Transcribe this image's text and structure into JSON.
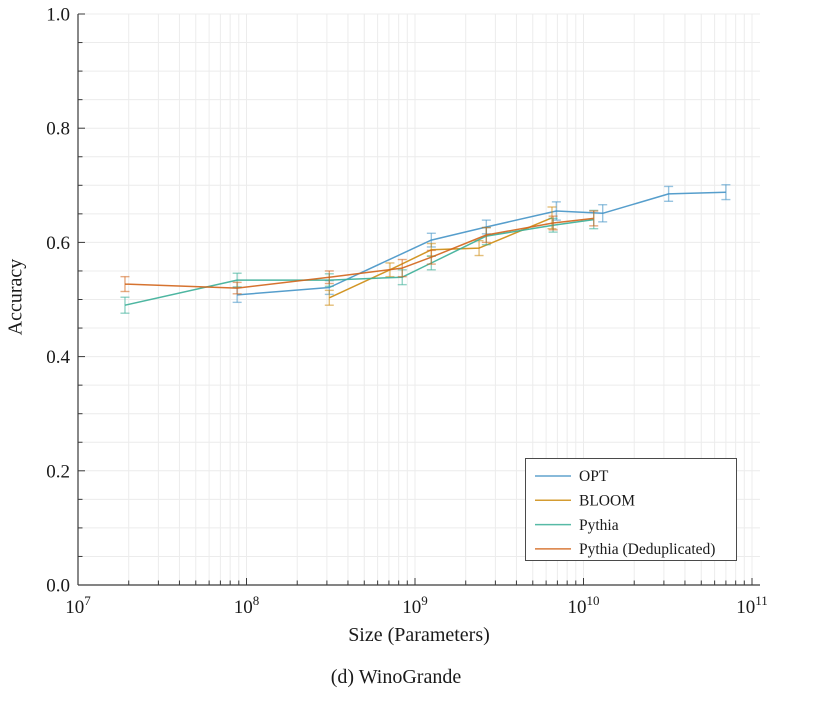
{
  "chart_data": {
    "type": "line",
    "title": "(d) WinoGrande",
    "xlabel": "Size (Parameters)",
    "ylabel": "Accuracy",
    "x_scale": "log",
    "xlim": [
      10000000,
      110000000000
    ],
    "ylim": [
      0.0,
      1.0
    ],
    "grid": true,
    "y_ticks": [
      0.0,
      0.2,
      0.4,
      0.6,
      0.8,
      1.0
    ],
    "y_tick_labels": [
      "0.0",
      "0.2",
      "0.4",
      "0.6",
      "0.8",
      "1.0"
    ],
    "x_ticks": [
      {
        "base": "10",
        "exponent": "7"
      },
      {
        "base": "10",
        "exponent": "8"
      },
      {
        "base": "10",
        "exponent": "9"
      },
      {
        "base": "10",
        "exponent": "10"
      },
      {
        "base": "10",
        "exponent": "11"
      }
    ],
    "legend_position": "lower right",
    "series": [
      {
        "name": "OPT",
        "color": "#4494C6",
        "points": [
          {
            "x": 88000000,
            "y": 0.508,
            "err": 0.013
          },
          {
            "x": 310000000,
            "y": 0.521,
            "err": 0.012
          },
          {
            "x": 1250000000,
            "y": 0.604,
            "err": 0.012
          },
          {
            "x": 2650000000,
            "y": 0.627,
            "err": 0.012
          },
          {
            "x": 6900000000,
            "y": 0.655,
            "err": 0.016
          },
          {
            "x": 13000000000,
            "y": 0.651,
            "err": 0.015
          },
          {
            "x": 32000000000,
            "y": 0.685,
            "err": 0.013
          },
          {
            "x": 70000000000,
            "y": 0.688,
            "err": 0.013
          }
        ]
      },
      {
        "name": "BLOOM",
        "color": "#CD8B0E",
        "points": [
          {
            "x": 310000000,
            "y": 0.503,
            "err": 0.013
          },
          {
            "x": 710000000,
            "y": 0.552,
            "err": 0.012
          },
          {
            "x": 1250000000,
            "y": 0.587,
            "err": 0.011
          },
          {
            "x": 2400000000,
            "y": 0.59,
            "err": 0.013
          },
          {
            "x": 6500000000,
            "y": 0.643,
            "err": 0.019
          }
        ]
      },
      {
        "name": "Pythia",
        "color": "#3AAE97",
        "points": [
          {
            "x": 19000000,
            "y": 0.49,
            "err": 0.014
          },
          {
            "x": 88000000,
            "y": 0.534,
            "err": 0.012
          },
          {
            "x": 310000000,
            "y": 0.534,
            "err": 0.011
          },
          {
            "x": 840000000,
            "y": 0.539,
            "err": 0.013
          },
          {
            "x": 1250000000,
            "y": 0.564,
            "err": 0.012
          },
          {
            "x": 2650000000,
            "y": 0.611,
            "err": 0.015
          },
          {
            "x": 6600000000,
            "y": 0.63,
            "err": 0.012
          },
          {
            "x": 11500000000,
            "y": 0.64,
            "err": 0.016
          }
        ]
      },
      {
        "name": "Pythia (Deduplicated)",
        "color": "#D2641A",
        "points": [
          {
            "x": 19000000,
            "y": 0.527,
            "err": 0.013
          },
          {
            "x": 88000000,
            "y": 0.52,
            "err": 0.01
          },
          {
            "x": 310000000,
            "y": 0.539,
            "err": 0.011
          },
          {
            "x": 840000000,
            "y": 0.555,
            "err": 0.015
          },
          {
            "x": 1250000000,
            "y": 0.574,
            "err": 0.012
          },
          {
            "x": 2650000000,
            "y": 0.613,
            "err": 0.013
          },
          {
            "x": 6600000000,
            "y": 0.634,
            "err": 0.012
          },
          {
            "x": 11500000000,
            "y": 0.642,
            "err": 0.013
          }
        ]
      }
    ],
    "style_colors": {
      "grid": "#ececec",
      "spine": "#3a3a3a",
      "legend_border": "#4a4a4a",
      "text": "#1a1a1a"
    }
  }
}
